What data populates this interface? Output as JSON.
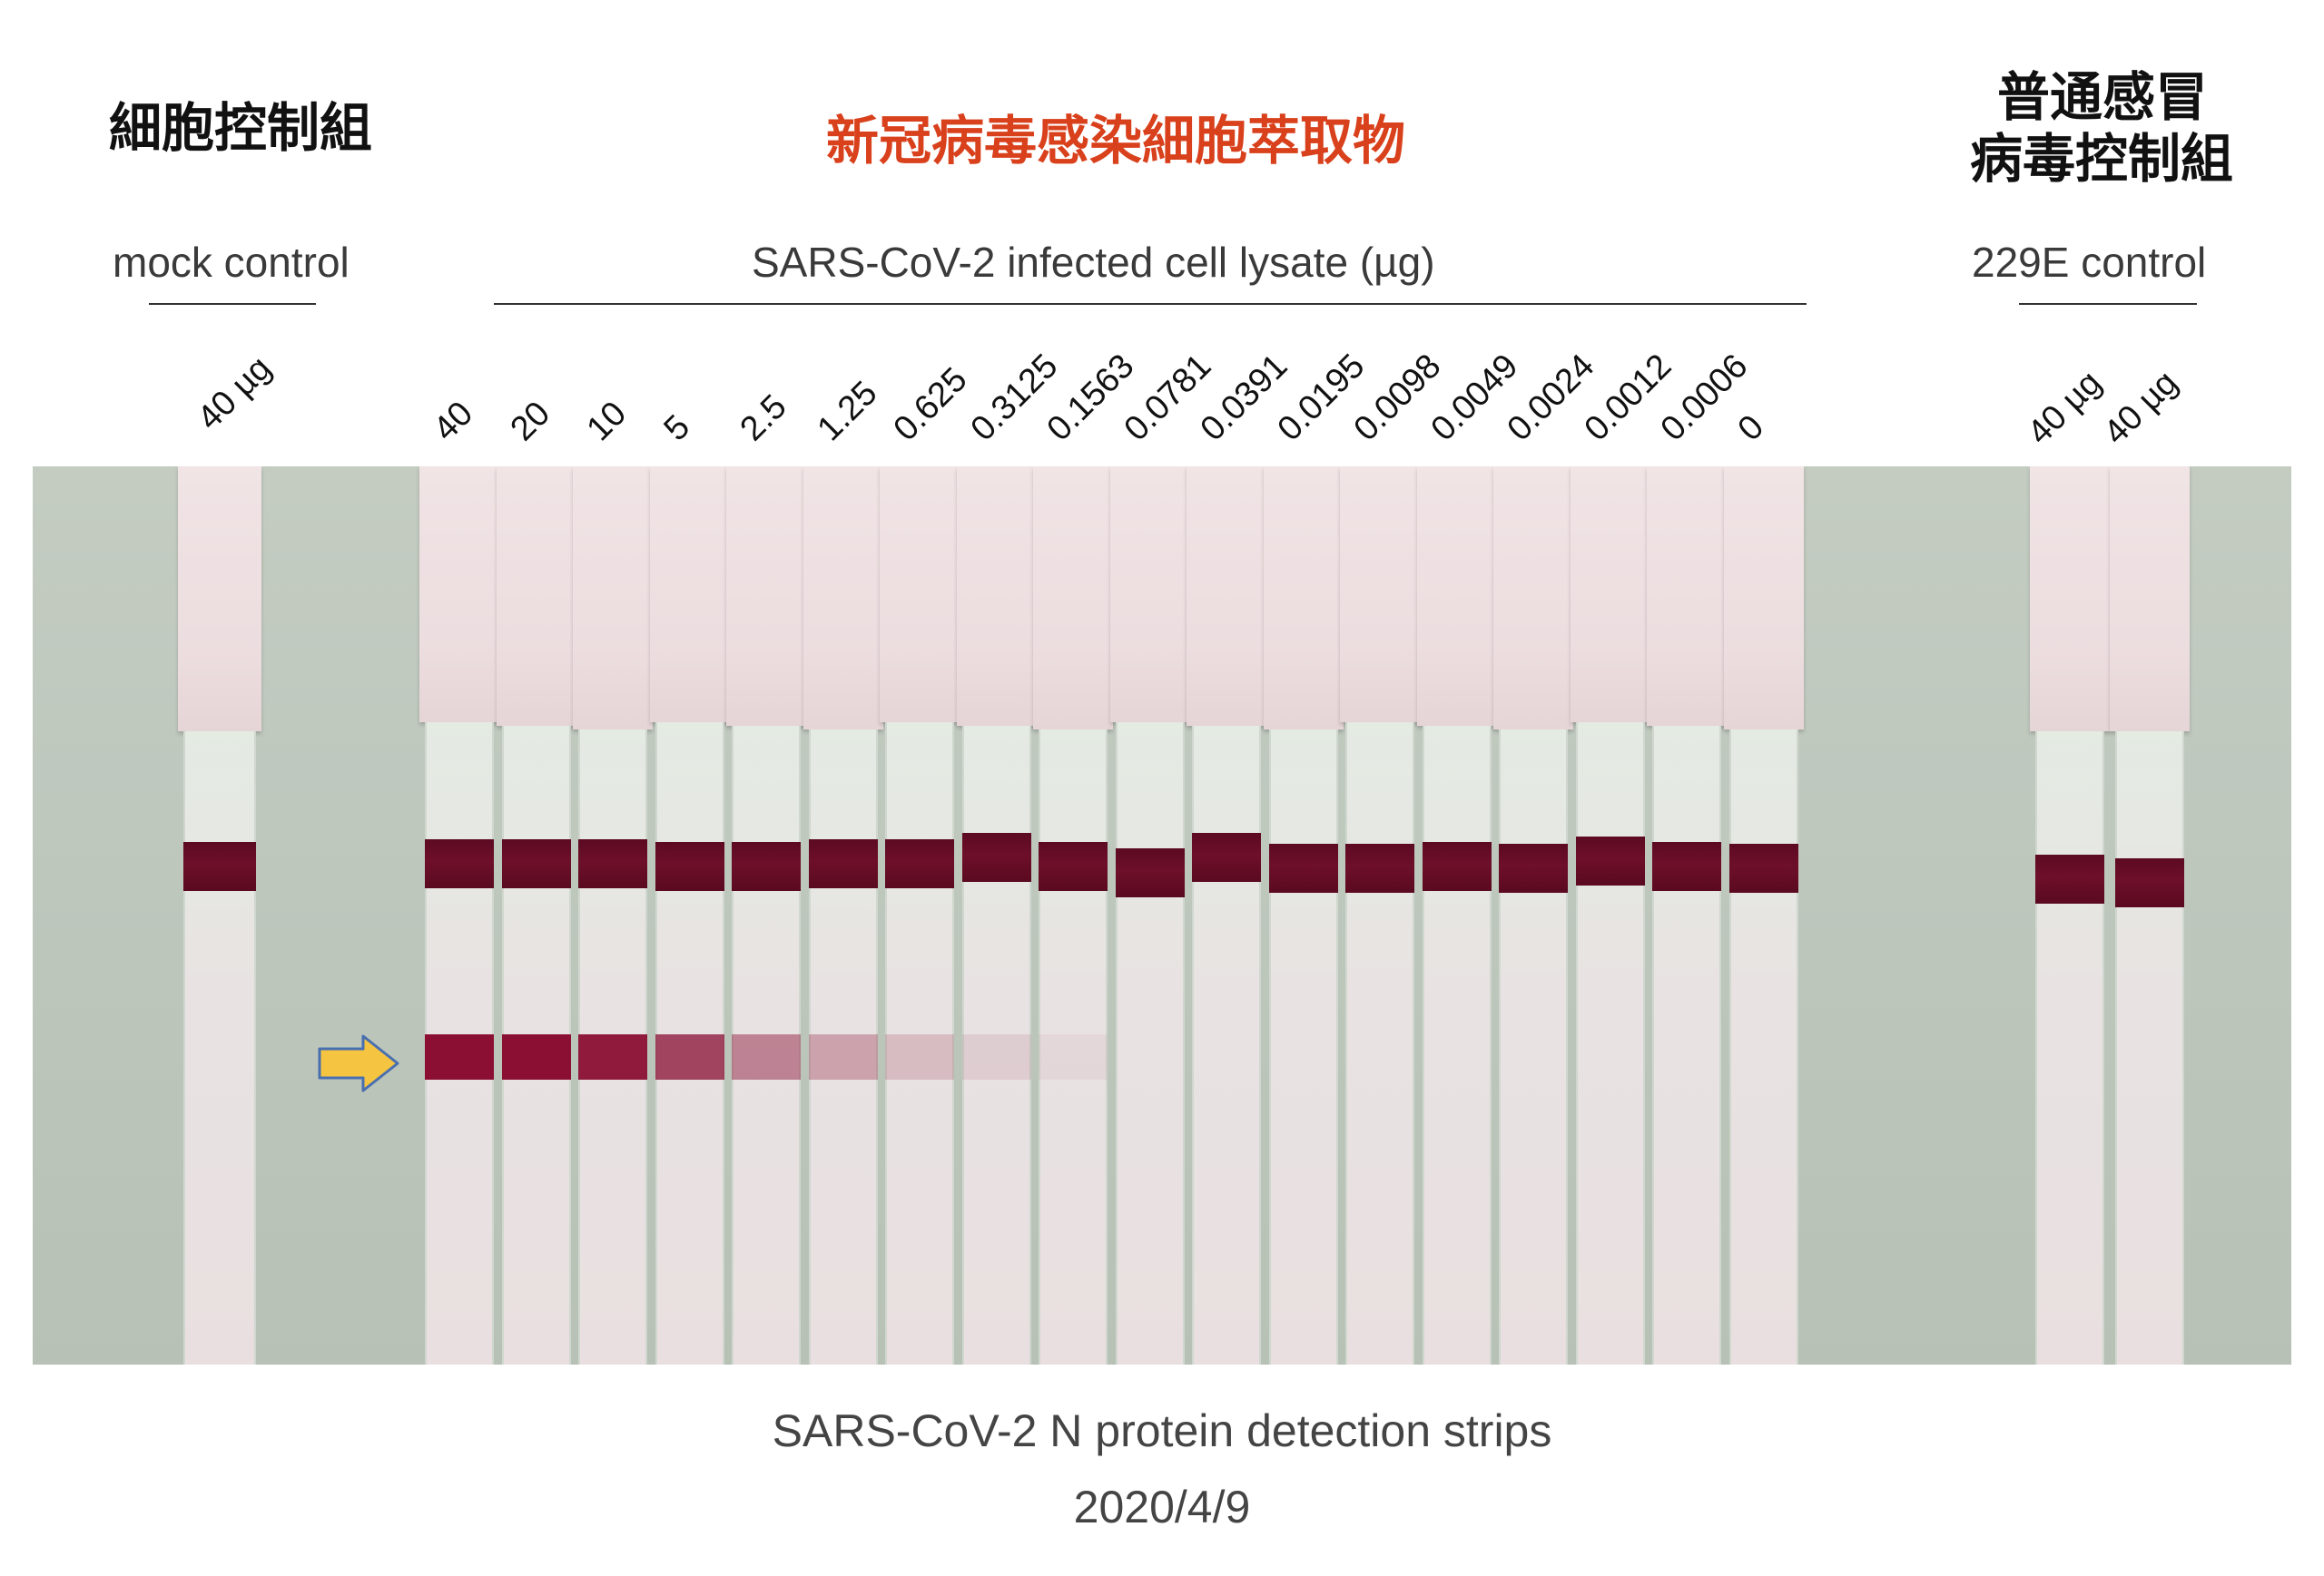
{
  "headers": {
    "mock_zh": "細胞控制組",
    "mock_en": "mock control",
    "infected_zh": "新冠病毒感染細胞萃取物",
    "infected_en": "SARS-CoV-2 infected cell lysate (µg)",
    "ctrl229e_zh_line1": "普通感冒",
    "ctrl229e_zh_line2": "病毒控制組",
    "ctrl229e_en": "229E control"
  },
  "lane_labels": {
    "mock": [
      "40 µg"
    ],
    "infected": [
      "40",
      "20",
      "10",
      "5",
      "2.5",
      "1.25",
      "0.625",
      "0.3125",
      "0.1563",
      "0.0781",
      "0.0391",
      "0.0195",
      "0.0098",
      "0.0049",
      "0.0024",
      "0.0012",
      "0.0006",
      "0"
    ],
    "ctrl229e": [
      "40 µg",
      "40 µg"
    ]
  },
  "test_line_intensity": [
    1.0,
    1.0,
    0.95,
    0.75,
    0.45,
    0.3,
    0.18,
    0.1,
    0.05,
    0,
    0,
    0,
    0,
    0,
    0,
    0,
    0,
    0
  ],
  "colors": {
    "control_band": "#5c0a22",
    "test_band": "#8a0f33",
    "arrow_fill": "#f5c542",
    "arrow_stroke": "#4a6fb0",
    "title_red": "#d9401c"
  },
  "icons": {
    "arrow": "yellow-right-arrow-icon"
  },
  "footer": {
    "title": "SARS-CoV-2 N protein detection strips",
    "date": "2020/4/9"
  }
}
